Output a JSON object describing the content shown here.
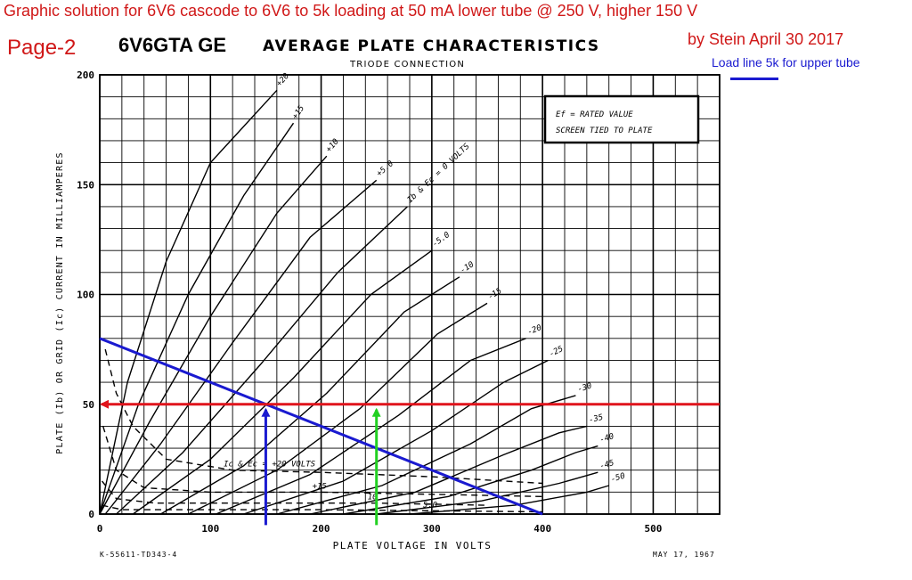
{
  "header": {
    "headline": "Graphic solution for 6V6 cascode to 6V6 to 5k loading  at 50 mA lower tube @ 250 V, higher 150 V",
    "byline": "by Stein   April 30 2017",
    "page_label": "Page-2",
    "loadline_note": "Load line 5k for upper tube"
  },
  "footer": {
    "left": "K-55611-TD343-4",
    "right": "MAY 17, 1967"
  },
  "colors": {
    "annotation_red": "#e0141c",
    "loadline_blue": "#1a1ad0",
    "arrow_green": "#22d022",
    "ink": "#000000"
  },
  "chart_data": {
    "type": "line",
    "tube": "6V6GTA GE",
    "title": "AVERAGE PLATE CHARACTERISTICS",
    "subtitle": "TRIODE CONNECTION",
    "xlabel": "PLATE VOLTAGE IN VOLTS",
    "ylabel": "PLATE (Ib) OR GRID (Ic) CURRENT IN MILLIAMPERES",
    "xlim": [
      0,
      560
    ],
    "ylim": [
      0,
      200
    ],
    "x_ticks": [
      "0",
      "100",
      "200",
      "300",
      "400",
      "500"
    ],
    "y_ticks": [
      "0",
      "50",
      "100",
      "150",
      "200"
    ],
    "grid": true,
    "note_box": [
      "Ef = RATED VALUE",
      "SCREEN TIED TO PLATE"
    ],
    "series": [
      {
        "name": "+20",
        "style": "solid",
        "points": [
          [
            0,
            0
          ],
          [
            25,
            60
          ],
          [
            60,
            115
          ],
          [
            100,
            160
          ],
          [
            160,
            193
          ]
        ]
      },
      {
        "name": "+15",
        "style": "solid",
        "points": [
          [
            0,
            0
          ],
          [
            35,
            50
          ],
          [
            80,
            100
          ],
          [
            130,
            145
          ],
          [
            175,
            178
          ]
        ]
      },
      {
        "name": "+10",
        "style": "solid",
        "points": [
          [
            0,
            0
          ],
          [
            45,
            42
          ],
          [
            100,
            90
          ],
          [
            160,
            137
          ],
          [
            205,
            163
          ]
        ]
      },
      {
        "name": "+5.0",
        "style": "solid",
        "points": [
          [
            5,
            0
          ],
          [
            55,
            32
          ],
          [
            120,
            78
          ],
          [
            190,
            126
          ],
          [
            250,
            152
          ]
        ]
      },
      {
        "name": "Ib & Ec = 0 VOLTS",
        "style": "solid",
        "points": [
          [
            15,
            0
          ],
          [
            75,
            28
          ],
          [
            145,
            68
          ],
          [
            215,
            110
          ],
          [
            278,
            140
          ]
        ]
      },
      {
        "name": "-5.0",
        "style": "solid",
        "points": [
          [
            30,
            0
          ],
          [
            100,
            25
          ],
          [
            175,
            62
          ],
          [
            245,
            100
          ],
          [
            300,
            120
          ]
        ]
      },
      {
        "name": "-10",
        "style": "solid",
        "points": [
          [
            55,
            0
          ],
          [
            130,
            22
          ],
          [
            205,
            55
          ],
          [
            275,
            92
          ],
          [
            325,
            108
          ]
        ]
      },
      {
        "name": "-15",
        "style": "solid",
        "points": [
          [
            80,
            0
          ],
          [
            160,
            20
          ],
          [
            235,
            48
          ],
          [
            305,
            82
          ],
          [
            350,
            96
          ]
        ]
      },
      {
        "name": "-20",
        "style": "solid",
        "points": [
          [
            105,
            0
          ],
          [
            190,
            18
          ],
          [
            270,
            45
          ],
          [
            335,
            70
          ],
          [
            385,
            80
          ]
        ]
      },
      {
        "name": "-25",
        "style": "solid",
        "points": [
          [
            130,
            0
          ],
          [
            220,
            15
          ],
          [
            300,
            38
          ],
          [
            365,
            60
          ],
          [
            405,
            70
          ]
        ]
      },
      {
        "name": "-30",
        "style": "solid",
        "points": [
          [
            160,
            0
          ],
          [
            255,
            13
          ],
          [
            335,
            32
          ],
          [
            390,
            48
          ],
          [
            430,
            54
          ]
        ]
      },
      {
        "name": "-35",
        "style": "solid",
        "points": [
          [
            190,
            0
          ],
          [
            285,
            10
          ],
          [
            365,
            27
          ],
          [
            415,
            37
          ],
          [
            440,
            40
          ]
        ]
      },
      {
        "name": "-40",
        "style": "solid",
        "points": [
          [
            220,
            0
          ],
          [
            315,
            8
          ],
          [
            390,
            20
          ],
          [
            430,
            28
          ],
          [
            450,
            31
          ]
        ]
      },
      {
        "name": "-45",
        "style": "solid",
        "points": [
          [
            250,
            0
          ],
          [
            345,
            6
          ],
          [
            415,
            14
          ],
          [
            450,
            19
          ]
        ]
      },
      {
        "name": "-50",
        "style": "solid",
        "points": [
          [
            280,
            0
          ],
          [
            375,
            4
          ],
          [
            440,
            10
          ],
          [
            460,
            13
          ]
        ]
      },
      {
        "name": "Ic & Ec = +20 VOLTS",
        "style": "dashed",
        "points": [
          [
            5,
            75
          ],
          [
            15,
            55
          ],
          [
            30,
            40
          ],
          [
            60,
            25
          ],
          [
            120,
            20
          ],
          [
            200,
            19
          ],
          [
            300,
            17
          ],
          [
            400,
            14
          ]
        ]
      },
      {
        "name": "+15",
        "style": "dashed",
        "points": [
          [
            3,
            40
          ],
          [
            15,
            20
          ],
          [
            40,
            12
          ],
          [
            100,
            10
          ],
          [
            200,
            10
          ],
          [
            300,
            9
          ],
          [
            400,
            8
          ]
        ]
      },
      {
        "name": "10",
        "style": "dashed",
        "points": [
          [
            2,
            15
          ],
          [
            15,
            7
          ],
          [
            50,
            5
          ],
          [
            150,
            5
          ],
          [
            250,
            5
          ],
          [
            350,
            4
          ]
        ]
      },
      {
        "name": "5.0",
        "style": "dashed",
        "points": [
          [
            2,
            4
          ],
          [
            20,
            2
          ],
          [
            100,
            2
          ],
          [
            200,
            2
          ],
          [
            300,
            1.5
          ],
          [
            400,
            1
          ]
        ]
      }
    ],
    "load_line": {
      "name": "Load line 5k for upper tube",
      "points": [
        [
          0,
          80
        ],
        [
          400,
          0
        ]
      ]
    },
    "operating_current": {
      "y": 50,
      "x_range": [
        0,
        560
      ]
    },
    "upper_tube_voltage": {
      "x": 150,
      "y": 50
    },
    "lower_tube_voltage": {
      "x": 250,
      "y": 50
    }
  }
}
